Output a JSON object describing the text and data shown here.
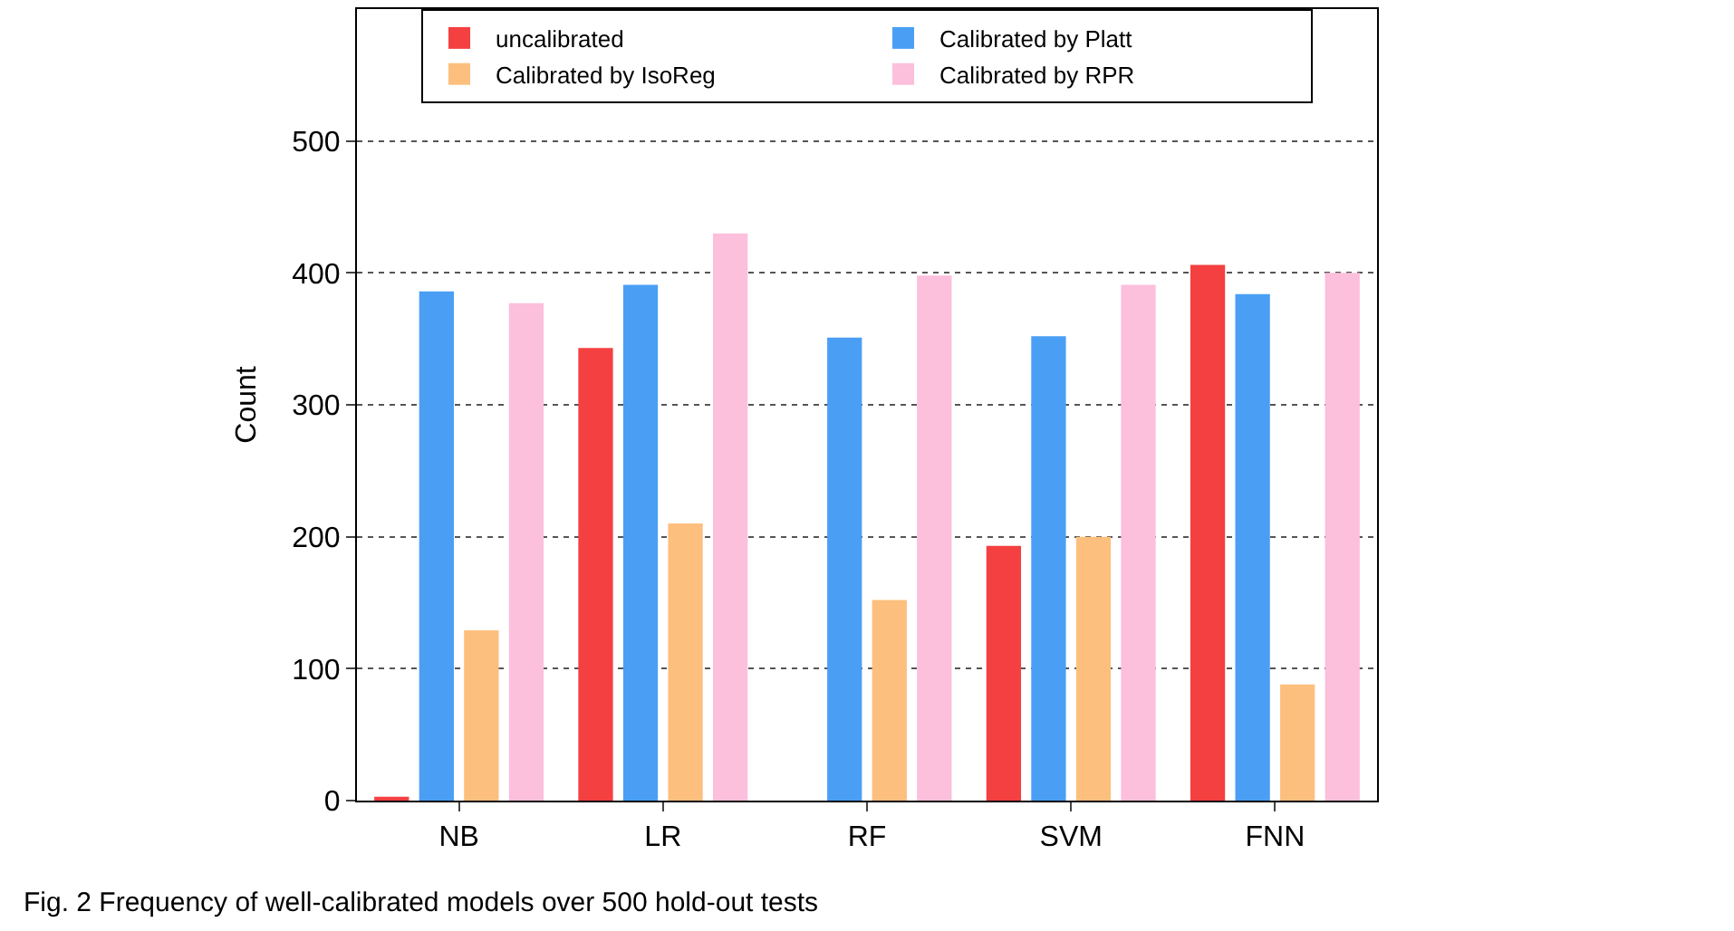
{
  "chart_data": {
    "type": "bar",
    "ylabel": "Count",
    "categories": [
      "NB",
      "LR",
      "RF",
      "SVM",
      "FNN"
    ],
    "series": [
      {
        "name": "uncalibrated",
        "color": "#f44040",
        "values": [
          3,
          343,
          0,
          193,
          406
        ]
      },
      {
        "name": "Calibrated by Platt",
        "color": "#4a9ff5",
        "values": [
          386,
          391,
          351,
          352,
          384
        ]
      },
      {
        "name": "Calibrated by IsoReg",
        "color": "#fdbf7e",
        "values": [
          129,
          210,
          152,
          200,
          88
        ]
      },
      {
        "name": "Calibrated by RPR",
        "color": "#fcbfdc",
        "values": [
          377,
          430,
          398,
          391,
          400
        ]
      }
    ],
    "ylim": [
      0,
      600
    ],
    "yticks": [
      0,
      100,
      200,
      300,
      400,
      500
    ],
    "grid": "y",
    "legend": "top",
    "annotations": [
      "Fig. 2 Frequency of well-calibrated models over 500 hold-out tests"
    ]
  }
}
